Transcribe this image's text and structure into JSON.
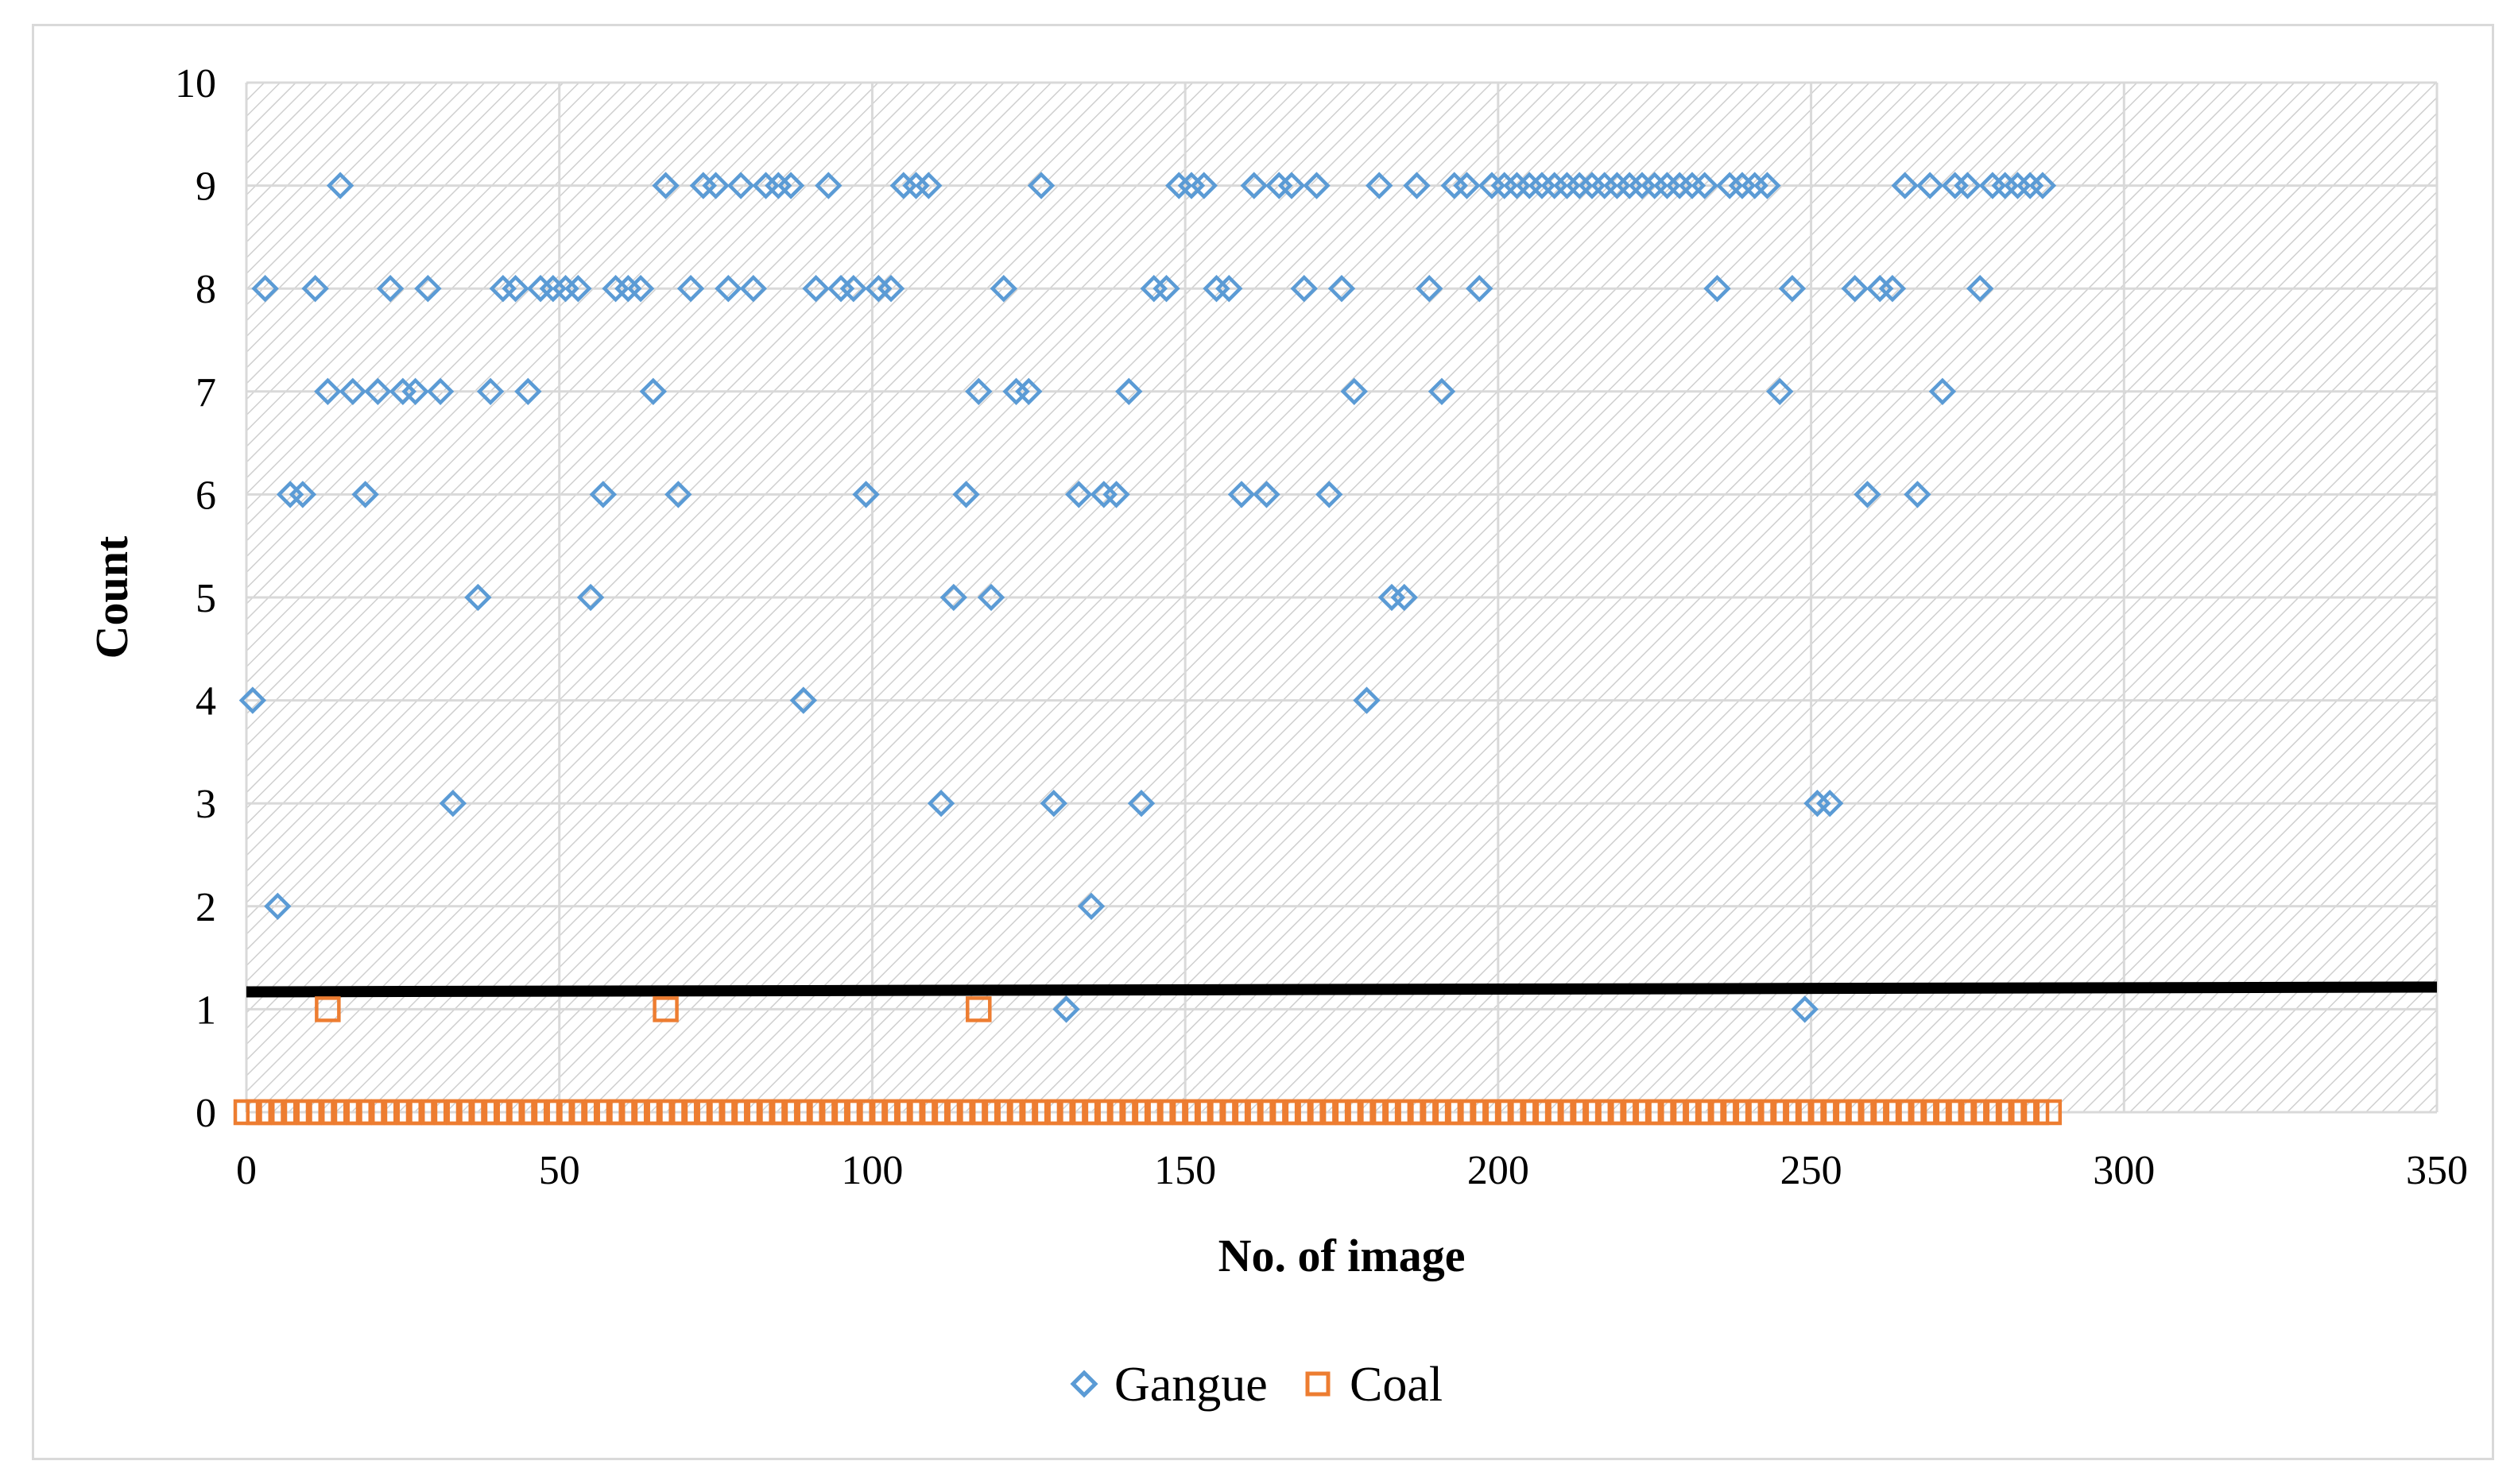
{
  "chart_data": {
    "type": "scatter",
    "title": "",
    "xlabel": "No. of image",
    "ylabel": "Count",
    "xlim": [
      0,
      350
    ],
    "ylim": [
      0,
      10
    ],
    "x_ticks": [
      0,
      50,
      100,
      150,
      200,
      250,
      300,
      350
    ],
    "y_ticks": [
      0,
      1,
      2,
      3,
      4,
      5,
      6,
      7,
      8,
      9,
      10
    ],
    "grid": true,
    "legend_position": "bottom",
    "threshold_line": {
      "y": 1.2,
      "color": "#000000"
    },
    "series": [
      {
        "name": "Gangue",
        "marker": "diamond",
        "color": "#5b9bd5",
        "points": [
          [
            1,
            4
          ],
          [
            3,
            8
          ],
          [
            5,
            2
          ],
          [
            7,
            6
          ],
          [
            9,
            6
          ],
          [
            11,
            8
          ],
          [
            13,
            7
          ],
          [
            15,
            9
          ],
          [
            17,
            7
          ],
          [
            19,
            6
          ],
          [
            21,
            7
          ],
          [
            23,
            8
          ],
          [
            25,
            7
          ],
          [
            27,
            7
          ],
          [
            29,
            8
          ],
          [
            31,
            7
          ],
          [
            33,
            3
          ],
          [
            37,
            5
          ],
          [
            39,
            7
          ],
          [
            41,
            8
          ],
          [
            43,
            8
          ],
          [
            45,
            7
          ],
          [
            47,
            8
          ],
          [
            49,
            8
          ],
          [
            51,
            8
          ],
          [
            53,
            8
          ],
          [
            55,
            5
          ],
          [
            57,
            6
          ],
          [
            59,
            8
          ],
          [
            61,
            8
          ],
          [
            63,
            8
          ],
          [
            65,
            7
          ],
          [
            67,
            9
          ],
          [
            69,
            6
          ],
          [
            71,
            8
          ],
          [
            73,
            9
          ],
          [
            75,
            9
          ],
          [
            77,
            8
          ],
          [
            79,
            9
          ],
          [
            81,
            8
          ],
          [
            83,
            9
          ],
          [
            85,
            9
          ],
          [
            87,
            9
          ],
          [
            89,
            4
          ],
          [
            91,
            8
          ],
          [
            93,
            9
          ],
          [
            95,
            8
          ],
          [
            97,
            8
          ],
          [
            99,
            6
          ],
          [
            101,
            8
          ],
          [
            103,
            8
          ],
          [
            105,
            9
          ],
          [
            107,
            9
          ],
          [
            109,
            9
          ],
          [
            111,
            3
          ],
          [
            113,
            5
          ],
          [
            115,
            6
          ],
          [
            117,
            7
          ],
          [
            119,
            5
          ],
          [
            121,
            8
          ],
          [
            123,
            7
          ],
          [
            125,
            7
          ],
          [
            127,
            9
          ],
          [
            129,
            3
          ],
          [
            131,
            1
          ],
          [
            133,
            6
          ],
          [
            135,
            2
          ],
          [
            137,
            6
          ],
          [
            139,
            6
          ],
          [
            141,
            7
          ],
          [
            143,
            3
          ],
          [
            145,
            8
          ],
          [
            147,
            8
          ],
          [
            149,
            9
          ],
          [
            151,
            9
          ],
          [
            153,
            9
          ],
          [
            155,
            8
          ],
          [
            157,
            8
          ],
          [
            159,
            6
          ],
          [
            161,
            9
          ],
          [
            163,
            6
          ],
          [
            165,
            9
          ],
          [
            167,
            9
          ],
          [
            169,
            8
          ],
          [
            171,
            9
          ],
          [
            173,
            6
          ],
          [
            175,
            8
          ],
          [
            177,
            7
          ],
          [
            179,
            4
          ],
          [
            181,
            9
          ],
          [
            183,
            5
          ],
          [
            185,
            5
          ],
          [
            187,
            9
          ],
          [
            189,
            8
          ],
          [
            191,
            7
          ],
          [
            193,
            9
          ],
          [
            195,
            9
          ],
          [
            197,
            8
          ],
          [
            199,
            9
          ],
          [
            201,
            9
          ],
          [
            203,
            9
          ],
          [
            205,
            9
          ],
          [
            207,
            9
          ],
          [
            209,
            9
          ],
          [
            211,
            9
          ],
          [
            213,
            9
          ],
          [
            215,
            9
          ],
          [
            217,
            9
          ],
          [
            219,
            9
          ],
          [
            221,
            9
          ],
          [
            223,
            9
          ],
          [
            225,
            9
          ],
          [
            227,
            9
          ],
          [
            229,
            9
          ],
          [
            231,
            9
          ],
          [
            233,
            9
          ],
          [
            235,
            8
          ],
          [
            237,
            9
          ],
          [
            239,
            9
          ],
          [
            241,
            9
          ],
          [
            243,
            9
          ],
          [
            245,
            7
          ],
          [
            247,
            8
          ],
          [
            249,
            1
          ],
          [
            251,
            3
          ],
          [
            253,
            3
          ],
          [
            257,
            8
          ],
          [
            259,
            6
          ],
          [
            261,
            8
          ],
          [
            263,
            8
          ],
          [
            265,
            9
          ],
          [
            267,
            6
          ],
          [
            269,
            9
          ],
          [
            271,
            7
          ],
          [
            273,
            9
          ],
          [
            275,
            9
          ],
          [
            277,
            8
          ],
          [
            279,
            9
          ],
          [
            281,
            9
          ],
          [
            283,
            9
          ],
          [
            285,
            9
          ],
          [
            287,
            9
          ]
        ]
      },
      {
        "name": "Coal",
        "marker": "square",
        "color": "#ed7d31",
        "one_points": [
          13,
          67,
          117
        ],
        "zero_points_x_range": [
          0,
          288
        ],
        "zero_points_step": 2
      }
    ]
  },
  "legend": {
    "items": [
      {
        "label": "Gangue",
        "color": "#5b9bd5",
        "marker": "diamond"
      },
      {
        "label": "Coal",
        "color": "#ed7d31",
        "marker": "square"
      }
    ]
  }
}
